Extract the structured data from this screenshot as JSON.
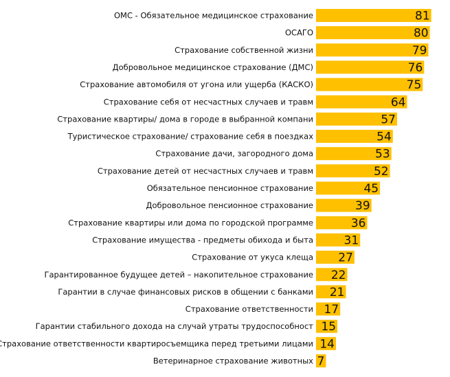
{
  "chart_data": {
    "type": "bar",
    "orientation": "horizontal",
    "title": "",
    "xlabel": "",
    "ylabel": "",
    "xlim": [
      0,
      81
    ],
    "grid": false,
    "legend": "none",
    "bar_color": "#FFC000",
    "categories": [
      "ОМС - Обязательное медицинское страхование",
      "ОСАГО",
      "Страхование собственной жизни",
      "Добровольное медицинское страхование (ДМС)",
      "Страхование автомобиля от угона или ущерба (КАСКО)",
      "Страхование себя от несчастных случаев и травм",
      "Страхование квартиры/ дома в городе в выбранной компани",
      "Туристическое страхование/ страхование себя в поездках",
      "Страхование дачи, загородного дома",
      "Страхование детей от несчастных случаев и травм",
      "Обязательное пенсионное страхование",
      "Добровольное пенсионное страхование",
      "Страхование квартиры или дома по городской программе",
      "Страхование имущества - предметы обихода и быта",
      "Страхование от укуса клеща",
      "Гарантированное будущее детей – накопительное страхование",
      "Гарантии в случае финансовых рисков в общении с банками",
      "Страхование ответственности",
      "Гарантии стабильного дохода на случай утраты трудоспособност",
      "Страхование ответственности квартиросъемщика перед третьими лицами",
      "Ветеринарное страхование животных"
    ],
    "values": [
      81,
      80,
      79,
      76,
      75,
      64,
      57,
      54,
      53,
      52,
      45,
      39,
      36,
      31,
      27,
      22,
      21,
      17,
      15,
      14,
      7
    ]
  }
}
